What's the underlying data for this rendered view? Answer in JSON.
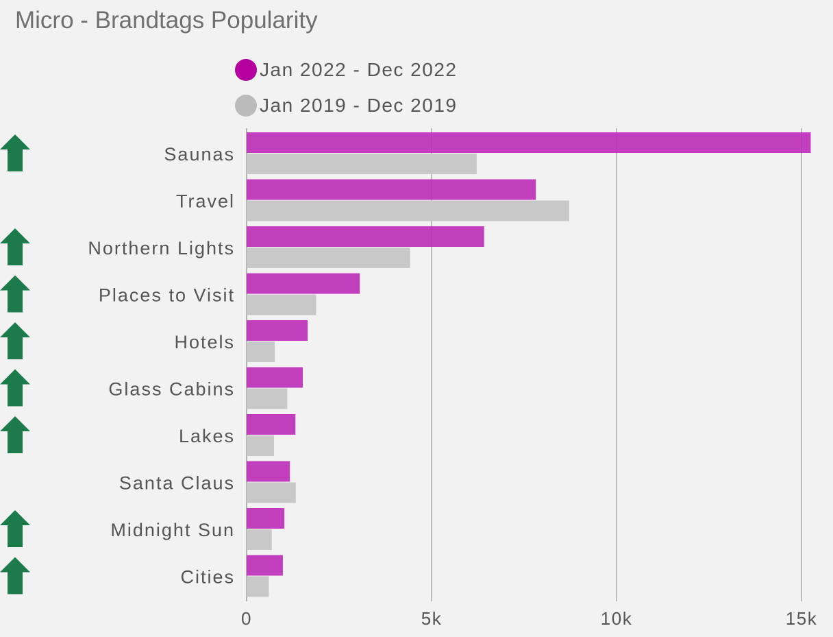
{
  "chart_data": {
    "type": "bar",
    "orientation": "horizontal",
    "title": "Micro - Brandtags Popularity",
    "categories": [
      "Saunas",
      "Travel",
      "Northern Lights",
      "Places to Visit",
      "Hotels",
      "Glass Cabins",
      "Lakes",
      "Santa Claus",
      "Midnight Sun",
      "Cities"
    ],
    "series": [
      {
        "name": "Jan 2022 - Dec 2022",
        "color": "#bb2bb7",
        "legend_color": "#b5009f",
        "values": [
          15250,
          7820,
          6420,
          3060,
          1650,
          1520,
          1320,
          1170,
          1020,
          980
        ]
      },
      {
        "name": "Jan 2019 - Dec 2019",
        "color": "#c8c8c8",
        "legend_color": "#bbbbbb",
        "values": [
          6220,
          8720,
          4420,
          1880,
          760,
          1100,
          740,
          1330,
          680,
          600
        ]
      }
    ],
    "xlim": [
      0,
      15000
    ],
    "x_ticks": [
      0,
      5000,
      10000,
      15000
    ],
    "x_tick_labels": [
      "0",
      "5k",
      "10k",
      "15k"
    ],
    "grid": true,
    "legend_position": "top",
    "trend_markers": [
      "up",
      "none",
      "up",
      "up",
      "up",
      "up",
      "up",
      "none",
      "up",
      "up"
    ],
    "trend_marker_color": "#1d7a4a"
  }
}
